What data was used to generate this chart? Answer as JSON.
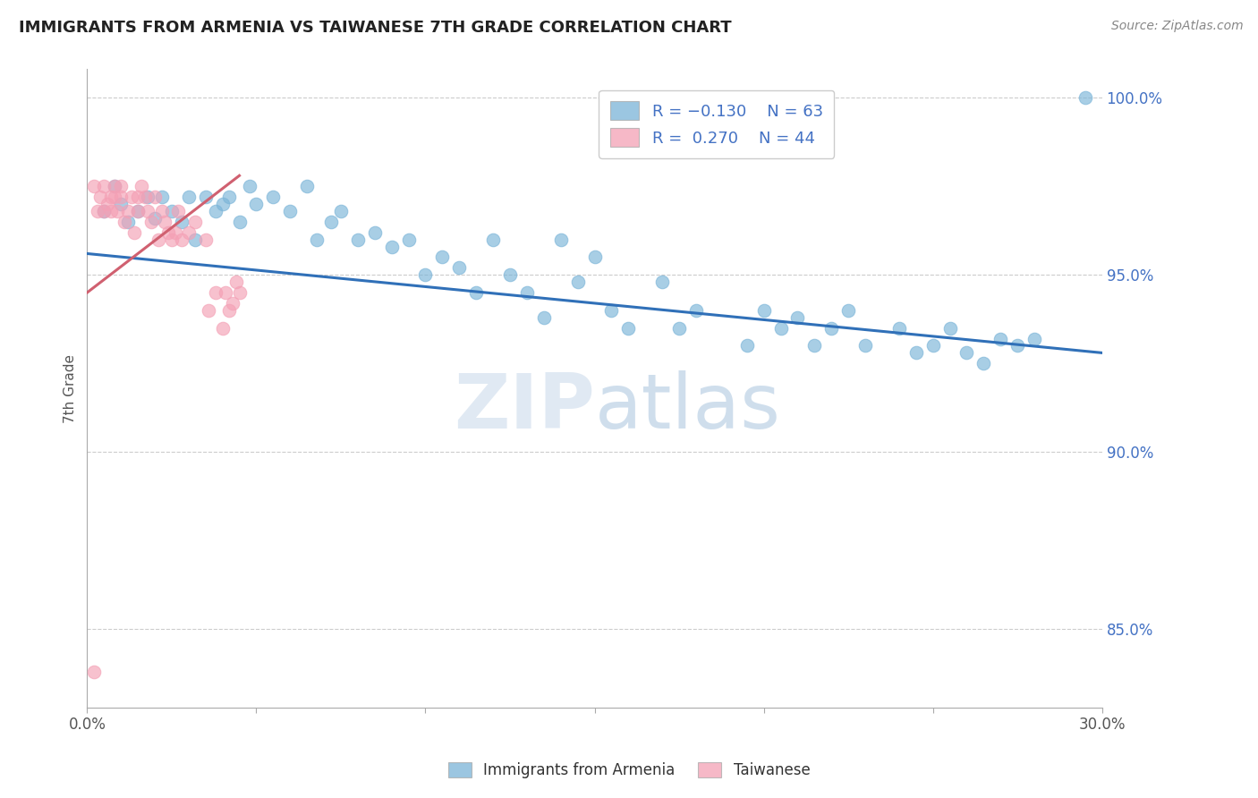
{
  "title": "IMMIGRANTS FROM ARMENIA VS TAIWANESE 7TH GRADE CORRELATION CHART",
  "source": "Source: ZipAtlas.com",
  "ylabel": "7th Grade",
  "xlim": [
    0.0,
    0.3
  ],
  "ylim": [
    0.828,
    1.008
  ],
  "xticks": [
    0.0,
    0.05,
    0.1,
    0.15,
    0.2,
    0.25,
    0.3
  ],
  "xticklabels": [
    "0.0%",
    "",
    "",
    "",
    "",
    "",
    "30.0%"
  ],
  "yticks_right": [
    0.85,
    0.9,
    0.95,
    1.0
  ],
  "ytick_labels_right": [
    "85.0%",
    "90.0%",
    "95.0%",
    "100.0%"
  ],
  "blue_color": "#7ab4d8",
  "pink_color": "#f4a0b5",
  "blue_line_color": "#3070b8",
  "pink_line_color": "#d06070",
  "legend_label1": "Immigrants from Armenia",
  "legend_label2": "Taiwanese",
  "blue_scatter_x": [
    0.005,
    0.008,
    0.01,
    0.012,
    0.015,
    0.018,
    0.02,
    0.022,
    0.025,
    0.028,
    0.03,
    0.032,
    0.035,
    0.038,
    0.04,
    0.042,
    0.045,
    0.048,
    0.05,
    0.055,
    0.06,
    0.065,
    0.068,
    0.072,
    0.075,
    0.08,
    0.085,
    0.09,
    0.095,
    0.1,
    0.105,
    0.11,
    0.115,
    0.12,
    0.125,
    0.13,
    0.135,
    0.14,
    0.145,
    0.15,
    0.155,
    0.16,
    0.17,
    0.175,
    0.18,
    0.195,
    0.2,
    0.205,
    0.21,
    0.215,
    0.22,
    0.225,
    0.23,
    0.24,
    0.245,
    0.25,
    0.255,
    0.26,
    0.265,
    0.27,
    0.275,
    0.28,
    0.295
  ],
  "blue_scatter_y": [
    0.968,
    0.975,
    0.97,
    0.965,
    0.968,
    0.972,
    0.966,
    0.972,
    0.968,
    0.965,
    0.972,
    0.96,
    0.972,
    0.968,
    0.97,
    0.972,
    0.965,
    0.975,
    0.97,
    0.972,
    0.968,
    0.975,
    0.96,
    0.965,
    0.968,
    0.96,
    0.962,
    0.958,
    0.96,
    0.95,
    0.955,
    0.952,
    0.945,
    0.96,
    0.95,
    0.945,
    0.938,
    0.96,
    0.948,
    0.955,
    0.94,
    0.935,
    0.948,
    0.935,
    0.94,
    0.93,
    0.94,
    0.935,
    0.938,
    0.93,
    0.935,
    0.94,
    0.93,
    0.935,
    0.928,
    0.93,
    0.935,
    0.928,
    0.925,
    0.932,
    0.93,
    0.932,
    1.0
  ],
  "pink_scatter_x": [
    0.002,
    0.003,
    0.004,
    0.005,
    0.005,
    0.006,
    0.007,
    0.007,
    0.008,
    0.008,
    0.009,
    0.01,
    0.01,
    0.011,
    0.012,
    0.013,
    0.014,
    0.015,
    0.015,
    0.016,
    0.017,
    0.018,
    0.019,
    0.02,
    0.021,
    0.022,
    0.023,
    0.024,
    0.025,
    0.026,
    0.027,
    0.028,
    0.03,
    0.032,
    0.035,
    0.036,
    0.038,
    0.04,
    0.041,
    0.042,
    0.043,
    0.044,
    0.045,
    0.002
  ],
  "pink_scatter_y": [
    0.975,
    0.968,
    0.972,
    0.968,
    0.975,
    0.97,
    0.972,
    0.968,
    0.975,
    0.972,
    0.968,
    0.975,
    0.972,
    0.965,
    0.968,
    0.972,
    0.962,
    0.968,
    0.972,
    0.975,
    0.972,
    0.968,
    0.965,
    0.972,
    0.96,
    0.968,
    0.965,
    0.962,
    0.96,
    0.962,
    0.968,
    0.96,
    0.962,
    0.965,
    0.96,
    0.94,
    0.945,
    0.935,
    0.945,
    0.94,
    0.942,
    0.948,
    0.945,
    0.838
  ],
  "blue_trend_x": [
    0.0,
    0.3
  ],
  "blue_trend_y": [
    0.956,
    0.928
  ],
  "pink_trend_x": [
    0.0,
    0.045
  ],
  "pink_trend_y": [
    0.945,
    0.978
  ],
  "watermark_zip": "ZIP",
  "watermark_atlas": "atlas",
  "background_color": "#ffffff",
  "grid_color": "#cccccc"
}
